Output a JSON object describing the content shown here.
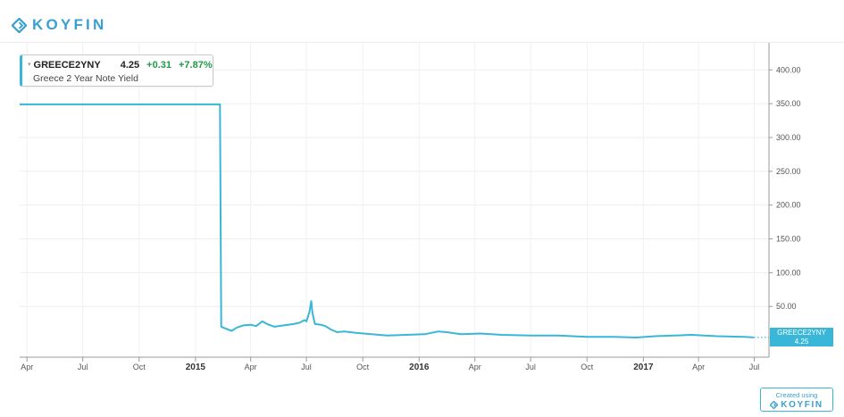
{
  "brand": {
    "name": "KOYFIN"
  },
  "legend": {
    "ticker": "GREECE2YNY",
    "price": "4.25",
    "change": "+0.31",
    "change_pct": "+7.87%",
    "name": "Greece 2 Year Note Yield"
  },
  "price_tag": {
    "ticker": "GREECE2YNY",
    "value": "4.25"
  },
  "footer": {
    "created_label": "Created using",
    "brand": "KOYFIN"
  },
  "colors": {
    "series": "#3ab6d8",
    "brand": "#3a9fd1",
    "positive": "#1f9b48"
  },
  "chart_data": {
    "type": "line",
    "title": "",
    "xlabel": "",
    "ylabel": "",
    "x_range": [
      "2014-03-20",
      "2017-07-25"
    ],
    "ylim": [
      -25,
      440
    ],
    "y_axis_position": "right",
    "y_ticks": [
      "50.00",
      "100.00",
      "150.00",
      "200.00",
      "250.00",
      "300.00",
      "350.00",
      "400.00"
    ],
    "y_tick_values": [
      50,
      100,
      150,
      200,
      250,
      300,
      350,
      400
    ],
    "x_ticks": [
      {
        "label": "Apr",
        "date": "2014-04-01",
        "bold": false
      },
      {
        "label": "Jul",
        "date": "2014-07-01",
        "bold": false
      },
      {
        "label": "Oct",
        "date": "2014-10-01",
        "bold": false
      },
      {
        "label": "2015",
        "date": "2015-01-01",
        "bold": true
      },
      {
        "label": "Apr",
        "date": "2015-04-01",
        "bold": false
      },
      {
        "label": "Jul",
        "date": "2015-07-01",
        "bold": false
      },
      {
        "label": "Oct",
        "date": "2015-10-01",
        "bold": false
      },
      {
        "label": "2016",
        "date": "2016-01-01",
        "bold": true
      },
      {
        "label": "Apr",
        "date": "2016-04-01",
        "bold": false
      },
      {
        "label": "Jul",
        "date": "2016-07-01",
        "bold": false
      },
      {
        "label": "Oct",
        "date": "2016-10-01",
        "bold": false
      },
      {
        "label": "2017",
        "date": "2017-01-01",
        "bold": true
      },
      {
        "label": "Apr",
        "date": "2017-04-01",
        "bold": false
      },
      {
        "label": "Jul",
        "date": "2017-07-01",
        "bold": false
      }
    ],
    "grid": true,
    "series": [
      {
        "name": "GREECE2YNY",
        "points": [
          [
            "2014-03-20",
            349
          ],
          [
            "2015-02-10",
            349
          ],
          [
            "2015-02-12",
            20
          ],
          [
            "2015-02-20",
            17
          ],
          [
            "2015-03-01",
            14
          ],
          [
            "2015-03-10",
            19
          ],
          [
            "2015-03-20",
            22
          ],
          [
            "2015-04-01",
            23
          ],
          [
            "2015-04-10",
            21
          ],
          [
            "2015-04-20",
            28
          ],
          [
            "2015-04-28",
            24
          ],
          [
            "2015-05-10",
            20
          ],
          [
            "2015-05-25",
            22
          ],
          [
            "2015-06-10",
            24
          ],
          [
            "2015-06-20",
            26
          ],
          [
            "2015-06-28",
            30
          ],
          [
            "2015-07-01",
            28
          ],
          [
            "2015-07-06",
            42
          ],
          [
            "2015-07-09",
            58
          ],
          [
            "2015-07-11",
            40
          ],
          [
            "2015-07-15",
            24
          ],
          [
            "2015-07-25",
            23
          ],
          [
            "2015-08-01",
            21
          ],
          [
            "2015-08-10",
            16
          ],
          [
            "2015-08-20",
            12
          ],
          [
            "2015-09-01",
            13
          ],
          [
            "2015-09-20",
            11
          ],
          [
            "2015-10-15",
            9
          ],
          [
            "2015-11-10",
            7
          ],
          [
            "2015-12-10",
            8
          ],
          [
            "2016-01-10",
            9
          ],
          [
            "2016-02-01",
            13
          ],
          [
            "2016-02-15",
            12
          ],
          [
            "2016-03-10",
            9
          ],
          [
            "2016-04-10",
            10
          ],
          [
            "2016-05-15",
            8
          ],
          [
            "2016-07-01",
            7
          ],
          [
            "2016-08-15",
            7
          ],
          [
            "2016-10-01",
            5
          ],
          [
            "2016-11-15",
            5
          ],
          [
            "2016-12-20",
            4
          ],
          [
            "2017-01-20",
            6
          ],
          [
            "2017-02-20",
            7
          ],
          [
            "2017-03-20",
            8
          ],
          [
            "2017-05-01",
            6
          ],
          [
            "2017-06-15",
            5
          ],
          [
            "2017-06-30",
            4.25
          ]
        ]
      }
    ],
    "last_value": 4.25
  }
}
